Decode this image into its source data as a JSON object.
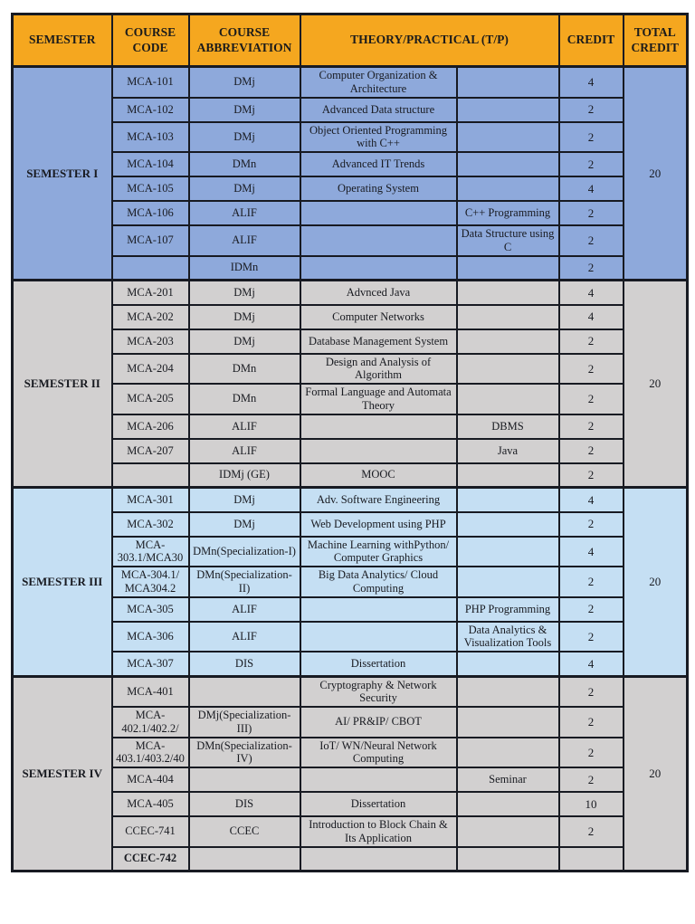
{
  "colors": {
    "border": "#171a22",
    "header_bg": "#f5a71f",
    "header_text": "#1b1b1b",
    "sem1": "#8ea9db",
    "sem2": "#d2d0d0",
    "sem3": "#c5dff3",
    "sem4": "#d2d0d0"
  },
  "header": {
    "columns": [
      "SEMESTER",
      "COURSE CODE",
      "COURSE ABBREVIATION",
      "THEORY/PRACTICAL (T/P)",
      "CREDIT",
      "TOTAL CREDIT"
    ]
  },
  "semesters": [
    {
      "id": "semester-1",
      "label": "SEMESTER I",
      "total_credit": "20",
      "theme": "sem1",
      "courses": [
        {
          "code": "MCA-101",
          "abbr": "DMj",
          "theory": "Computer Organization & Architecture",
          "practical": "",
          "credit": "4"
        },
        {
          "code": "MCA-102",
          "abbr": "DMj",
          "theory": "Advanced Data structure",
          "practical": "",
          "credit": "2"
        },
        {
          "code": "MCA-103",
          "abbr": "DMj",
          "theory": "Object Oriented Programming with C++",
          "practical": "",
          "credit": "2"
        },
        {
          "code": "MCA-104",
          "abbr": "DMn",
          "theory": "Advanced IT Trends",
          "practical": "",
          "credit": "2"
        },
        {
          "code": "MCA-105",
          "abbr": "DMj",
          "theory": "Operating System",
          "practical": "",
          "credit": "4"
        },
        {
          "code": "MCA-106",
          "abbr": "ALIF",
          "theory": "",
          "practical": "C++ Programming",
          "credit": "2"
        },
        {
          "code": "MCA-107",
          "abbr": "ALIF",
          "theory": "",
          "practical": "Data Structure using C",
          "credit": "2"
        },
        {
          "code": "",
          "abbr": "IDMn",
          "theory": "",
          "practical": "",
          "credit": "2"
        }
      ]
    },
    {
      "id": "semester-2",
      "label": "SEMESTER II",
      "total_credit": "20",
      "theme": "sem2",
      "courses": [
        {
          "code": "MCA-201",
          "abbr": "DMj",
          "theory": "Advnced Java",
          "practical": "",
          "credit": "4"
        },
        {
          "code": "MCA-202",
          "abbr": "DMj",
          "theory": "Computer Networks",
          "practical": "",
          "credit": "4"
        },
        {
          "code": "MCA-203",
          "abbr": "DMj",
          "theory": "Database Management System",
          "practical": "",
          "credit": "2"
        },
        {
          "code": "MCA-204",
          "abbr": "DMn",
          "theory": "Design and Analysis of Algorithm",
          "practical": "",
          "credit": "2"
        },
        {
          "code": "MCA-205",
          "abbr": "DMn",
          "theory": "Formal Language and Automata Theory",
          "practical": "",
          "credit": "2"
        },
        {
          "code": "MCA-206",
          "abbr": "ALIF",
          "theory": "",
          "practical": "DBMS",
          "credit": "2"
        },
        {
          "code": "MCA-207",
          "abbr": "ALIF",
          "theory": "",
          "practical": "Java",
          "credit": "2"
        },
        {
          "code": "",
          "abbr": "IDMj (GE)",
          "theory": "MOOC",
          "practical": "",
          "credit": "2"
        }
      ]
    },
    {
      "id": "semester-3",
      "label": "SEMESTER III",
      "total_credit": "20",
      "theme": "sem3",
      "courses": [
        {
          "code": "MCA-301",
          "abbr": "DMj",
          "theory": "Adv. Software Engineering",
          "practical": "",
          "credit": "4"
        },
        {
          "code": "MCA-302",
          "abbr": "DMj",
          "theory": "Web Development using PHP",
          "practical": "",
          "credit": "2"
        },
        {
          "code": "MCA-303.1/MCA30",
          "abbr": "DMn(Specialization-I)",
          "theory": "Machine Learning withPython/ Computer Graphics",
          "practical": "",
          "credit": "4"
        },
        {
          "code": "MCA-304.1/ MCA304.2",
          "abbr": "DMn(Specialization-II)",
          "theory": "Big Data Analytics/ Cloud Computing",
          "practical": "",
          "credit": "2"
        },
        {
          "code": "MCA-305",
          "abbr": "ALIF",
          "theory": "",
          "practical": "PHP Programming",
          "credit": "2"
        },
        {
          "code": "MCA-306",
          "abbr": "ALIF",
          "theory": "",
          "practical": "Data Analytics & Visualization Tools",
          "credit": "2"
        },
        {
          "code": "MCA-307",
          "abbr": "DIS",
          "theory": "Dissertation",
          "practical": "",
          "credit": "4"
        }
      ]
    },
    {
      "id": "semester-4",
      "label": "SEMESTER IV",
      "total_credit": "20",
      "theme": "sem4",
      "courses": [
        {
          "code": "MCA-401",
          "abbr": "",
          "theory": "Cryptography & Network Security",
          "practical": "",
          "credit": "2"
        },
        {
          "code": "MCA-402.1/402.2/",
          "abbr": "DMj(Specialization-III)",
          "theory": "AI/ PR&IP/ CBOT",
          "practical": "",
          "credit": "2"
        },
        {
          "code": "MCA-403.1/403.2/40",
          "abbr": "DMn(Specialization-IV)",
          "theory": "IoT/ WN/Neural Network Computing",
          "practical": "",
          "credit": "2"
        },
        {
          "code": "MCA-404",
          "abbr": "",
          "theory": "",
          "practical": "Seminar",
          "credit": "2"
        },
        {
          "code": "MCA-405",
          "abbr": "DIS",
          "theory": "Dissertation",
          "practical": "",
          "credit": "10"
        },
        {
          "code": "CCEC-741",
          "abbr": "CCEC",
          "theory": "Introduction to Block Chain & Its Application",
          "practical": "",
          "credit": "2"
        },
        {
          "code": "CCEC-742",
          "abbr": "",
          "theory": "",
          "practical": "",
          "credit": "",
          "code_bold": true
        }
      ]
    }
  ]
}
